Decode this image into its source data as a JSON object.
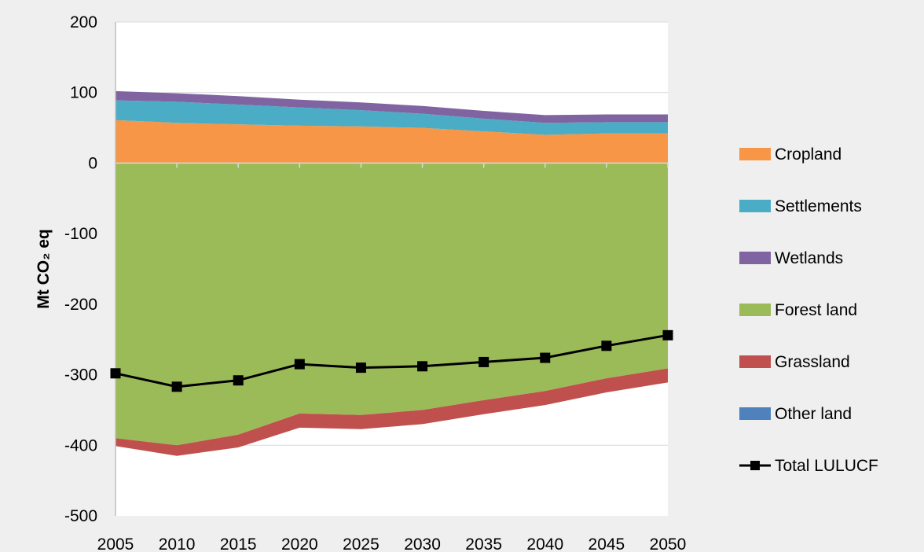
{
  "chart_data": {
    "type": "area",
    "title": "",
    "ylabel": "Mt CO₂ eq",
    "xlabel": "",
    "ylim": [
      -500,
      200
    ],
    "yticks": [
      200,
      100,
      0,
      -100,
      -200,
      -300,
      -400,
      -500
    ],
    "x": [
      2005,
      2010,
      2015,
      2020,
      2025,
      2030,
      2035,
      2040,
      2045,
      2050
    ],
    "legend_position": "right",
    "grid": "horizontal",
    "series": [
      {
        "name": "Cropland",
        "color": "#f79646",
        "stack": "positive",
        "values": [
          61,
          57,
          55,
          53,
          52,
          50,
          45,
          40,
          42,
          42
        ]
      },
      {
        "name": "Settlements",
        "color": "#4bacc6",
        "stack": "positive",
        "values": [
          28,
          30,
          28,
          26,
          23,
          20,
          18,
          17,
          16,
          16
        ]
      },
      {
        "name": "Wetlands",
        "color": "#8064a2",
        "stack": "positive",
        "values": [
          13,
          12,
          12,
          11,
          11,
          11,
          11,
          11,
          11,
          11
        ]
      },
      {
        "name": "Forest land",
        "color": "#9bbb59",
        "stack": "negative",
        "values": [
          -390,
          -400,
          -385,
          -355,
          -357,
          -350,
          -336,
          -323,
          -305,
          -291
        ]
      },
      {
        "name": "Grassland",
        "color": "#c0504d",
        "stack": "negative",
        "values": [
          -11,
          -15,
          -18,
          -20,
          -20,
          -20,
          -20,
          -20,
          -20,
          -20
        ]
      },
      {
        "name": "Other land",
        "color": "#4f81bd",
        "stack": "negative",
        "values": [
          0,
          0,
          0,
          0,
          0,
          0,
          0,
          0,
          0,
          0
        ]
      },
      {
        "name": "Total LULUCF",
        "color": "#000000",
        "type": "line",
        "values": [
          -298,
          -317,
          -308,
          -285,
          -290,
          -288,
          -282,
          -276,
          -259,
          -244
        ]
      }
    ]
  }
}
